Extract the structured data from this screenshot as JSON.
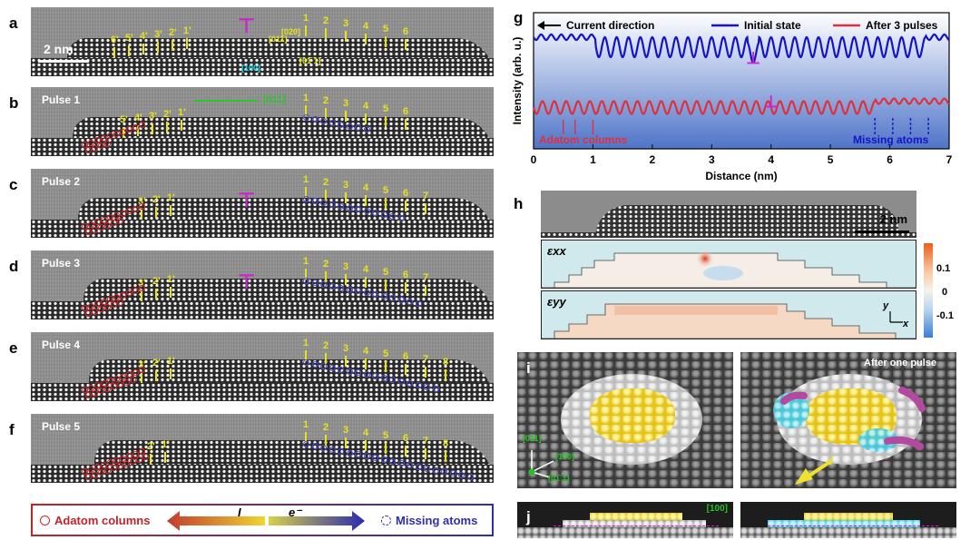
{
  "panels": {
    "a": {
      "label": "a",
      "scale_bar": "2 nm",
      "markers_left": [
        "6'",
        "5'",
        "4'",
        "3'",
        "2'",
        "1'"
      ],
      "markers_right": [
        "1",
        "2",
        "3",
        "4",
        "5",
        "6"
      ],
      "crystal_axes": [
        "[011]",
        "[020]",
        "[01̄ 1]",
        "[100]"
      ]
    },
    "b": {
      "label": "b",
      "title": "Pulse 1",
      "direction": "[011]",
      "markers_left": [
        "5'",
        "4'",
        "3'",
        "2'",
        "1'"
      ],
      "markers_right": [
        "1",
        "2",
        "3",
        "4",
        "5",
        "6"
      ]
    },
    "c": {
      "label": "c",
      "title": "Pulse 2",
      "markers_left": [
        "3'",
        "2'",
        "1'"
      ],
      "markers_right": [
        "1",
        "2",
        "3",
        "4",
        "5",
        "6",
        "7"
      ]
    },
    "d": {
      "label": "d",
      "title": "Pulse 3",
      "markers_left": [
        "3'",
        "2'",
        "1'"
      ],
      "markers_right": [
        "1",
        "2",
        "3",
        "4",
        "5",
        "6",
        "7"
      ]
    },
    "e": {
      "label": "e",
      "title": "Pulse 4",
      "markers_left": [
        "3'",
        "2'",
        "1'"
      ],
      "markers_right": [
        "1",
        "2",
        "3",
        "4",
        "5",
        "6",
        "7",
        "8"
      ]
    },
    "f": {
      "label": "f",
      "title": "Pulse 5",
      "markers_left": [
        "2'",
        "1'"
      ],
      "markers_right": [
        "1",
        "2",
        "3",
        "4",
        "5",
        "6",
        "7",
        "8"
      ]
    }
  },
  "legend": {
    "adatom": "Adatom columns",
    "current": "I",
    "electron": "e⁻",
    "missing": "Missing atoms"
  },
  "chart_data": {
    "type": "line",
    "label": "g",
    "title": "",
    "xlabel": "Distance (nm)",
    "ylabel": "Intensity (arb. u.)",
    "xlim": [
      0,
      7
    ],
    "x_ticks": [
      "0",
      "1",
      "2",
      "3",
      "4",
      "5",
      "6",
      "7"
    ],
    "legend": [
      "Initial state",
      "After 3 pulses"
    ],
    "direction_label": "Current direction",
    "annotations": {
      "adatom": "Adatom columns",
      "missing": "Missing atoms",
      "dislocation": "⊥"
    },
    "series": [
      {
        "name": "Initial state",
        "color": "#1414c8",
        "x": [
          0,
          0.3,
          0.6,
          0.9,
          1.0,
          1.05,
          7.0
        ],
        "flat_level": 0.82,
        "oscillation_start": 1.05,
        "oscillation_end": 6.6,
        "period_nm": 0.2
      },
      {
        "name": "After 3 pulses",
        "color": "#e0303a",
        "flat_level": 0.35,
        "oscillation_start": 0.0,
        "oscillation_end": 5.75,
        "period_nm": 0.2
      }
    ]
  },
  "panel_h": {
    "label": "h",
    "scale_bar": "2 nm",
    "exx": "εxx",
    "eyy": "εyy",
    "colorbar_ticks": [
      "0.1",
      "0",
      "-0.1"
    ],
    "axis_y": "y",
    "axis_x": "x"
  },
  "panel_i": {
    "label": "i",
    "after": "After one pulse",
    "axes": [
      "[011]",
      "[100]",
      "[01̄ 1]"
    ],
    "current": "I"
  },
  "panel_j": {
    "label": "j",
    "axis": "[100]"
  },
  "colors": {
    "red": "#d0262a",
    "blue": "#3535c0",
    "yellow": "#e8e21c",
    "magenta": "#d21fd2"
  }
}
